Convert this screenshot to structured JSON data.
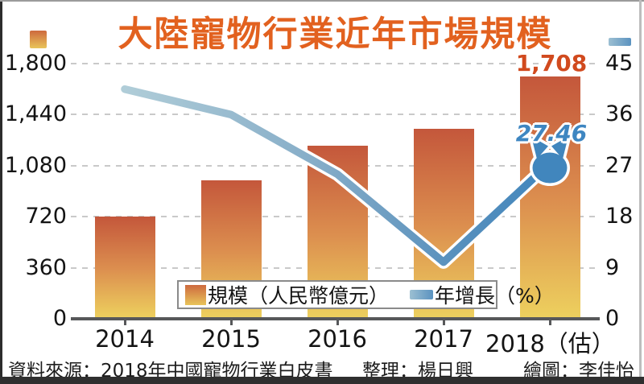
{
  "title": "大陸寵物行業近年市場規模",
  "chart_data": {
    "type": "bar",
    "subtype": "bar-line-combo",
    "categories": [
      "2014",
      "2015",
      "2016",
      "2017",
      "2018（估）"
    ],
    "series": [
      {
        "name": "規模（人民幣億元）",
        "type": "bar",
        "axis": "left",
        "values": [
          719,
          978,
          1220,
          1340,
          1708
        ]
      },
      {
        "name": "年增長（%）",
        "type": "line",
        "axis": "right",
        "values": [
          40.5,
          36.0,
          25.5,
          10.0,
          27.46
        ]
      }
    ],
    "left_axis": {
      "max": 1800,
      "tick_values": [
        1800,
        1440,
        1080,
        720,
        360,
        0
      ],
      "tick_labels": [
        "1,800",
        "1,440",
        "1,080",
        "720",
        "360",
        "0"
      ]
    },
    "right_axis": {
      "max": 45,
      "tick_values": [
        45,
        36,
        27,
        18,
        9,
        0
      ],
      "tick_labels": [
        "45",
        "36",
        "27",
        "18",
        "9",
        "0"
      ]
    },
    "annotations": {
      "bar_value_label": "1,708",
      "line_value_label": "27.46",
      "line_end_marker": "cat-head"
    },
    "grid": "horizontal-dashed",
    "legend_position": "bottom-center-overlay"
  },
  "colors": {
    "title": "#e2611f",
    "bar_gradient_top": "#c4573b",
    "bar_gradient_bottom": "#edd05e",
    "line_start": "#b0cdd8",
    "line_end": "#4186bd",
    "bar_value_label": "#d14a1e",
    "line_value_label": "#3e86c1"
  },
  "footer": {
    "source": "資料來源：2018年中國寵物行業白皮書",
    "editor": "整理：楊日興",
    "illustrator": "繪圖：李佳怡"
  }
}
